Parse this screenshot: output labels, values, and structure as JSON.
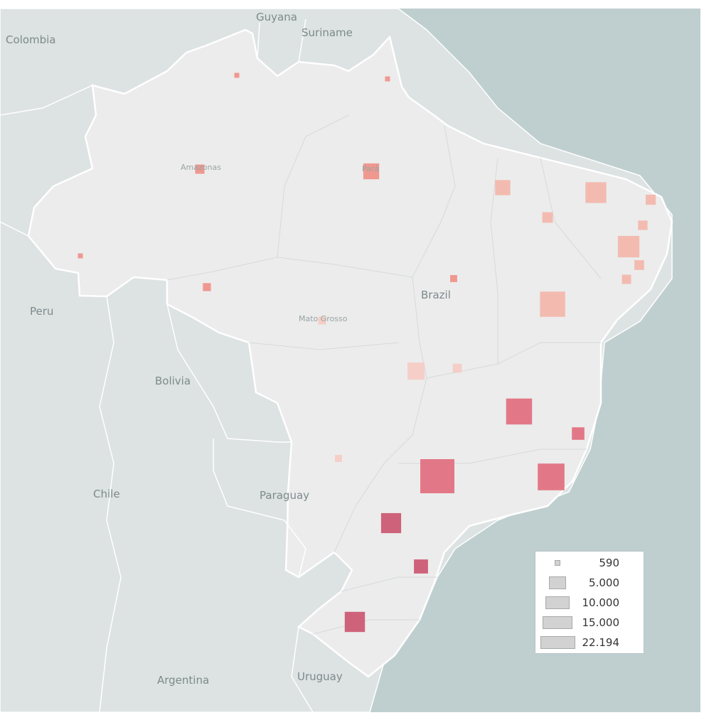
{
  "map": {
    "country_labels": [
      "Colombia",
      "Guyana",
      "Suriname",
      "Peru",
      "Bolivia",
      "Chile",
      "Paraguay",
      "Argentina",
      "Uruguay",
      "Brazil"
    ],
    "state_labels": [
      "Amazonas",
      "Pará",
      "Mato Grosso"
    ],
    "colors": {
      "ocean": "#bfcfcf",
      "land_other": "#dde2e2",
      "land_brazil": "#ececec",
      "border": "#ffffff"
    }
  },
  "chart_data": {
    "type": "proportional-symbol-map",
    "size_legend": [
      "590",
      "5.000",
      "10.000",
      "15.000",
      "22.194"
    ],
    "size_range": [
      590,
      22194
    ],
    "color_scale": [
      "#f7c9c2",
      "#f5b3a6",
      "#f08a80",
      "#e06475",
      "#c94a66"
    ],
    "points": [
      {
        "value": 590,
        "shade": 2
      },
      {
        "value": 590,
        "shade": 2
      },
      {
        "value": 1800,
        "shade": 2
      },
      {
        "value": 5000,
        "shade": 2
      },
      {
        "value": 590,
        "shade": 2
      },
      {
        "value": 1400,
        "shade": 2
      },
      {
        "value": 1300,
        "shade": 0
      },
      {
        "value": 4600,
        "shade": 1
      },
      {
        "value": 8500,
        "shade": 1
      },
      {
        "value": 2300,
        "shade": 1
      },
      {
        "value": 2100,
        "shade": 1
      },
      {
        "value": 9000,
        "shade": 1
      },
      {
        "value": 1900,
        "shade": 1
      },
      {
        "value": 2000,
        "shade": 1
      },
      {
        "value": 1800,
        "shade": 1
      },
      {
        "value": 12300,
        "shade": 1
      },
      {
        "value": 1100,
        "shade": 2
      },
      {
        "value": 5800,
        "shade": 0
      },
      {
        "value": 1700,
        "shade": 0
      },
      {
        "value": 13000,
        "shade": 3
      },
      {
        "value": 3200,
        "shade": 3
      },
      {
        "value": 1100,
        "shade": 0
      },
      {
        "value": 22194,
        "shade": 3
      },
      {
        "value": 13800,
        "shade": 3
      },
      {
        "value": 7900,
        "shade": 4
      },
      {
        "value": 4000,
        "shade": 4
      },
      {
        "value": 8000,
        "shade": 4
      }
    ]
  }
}
